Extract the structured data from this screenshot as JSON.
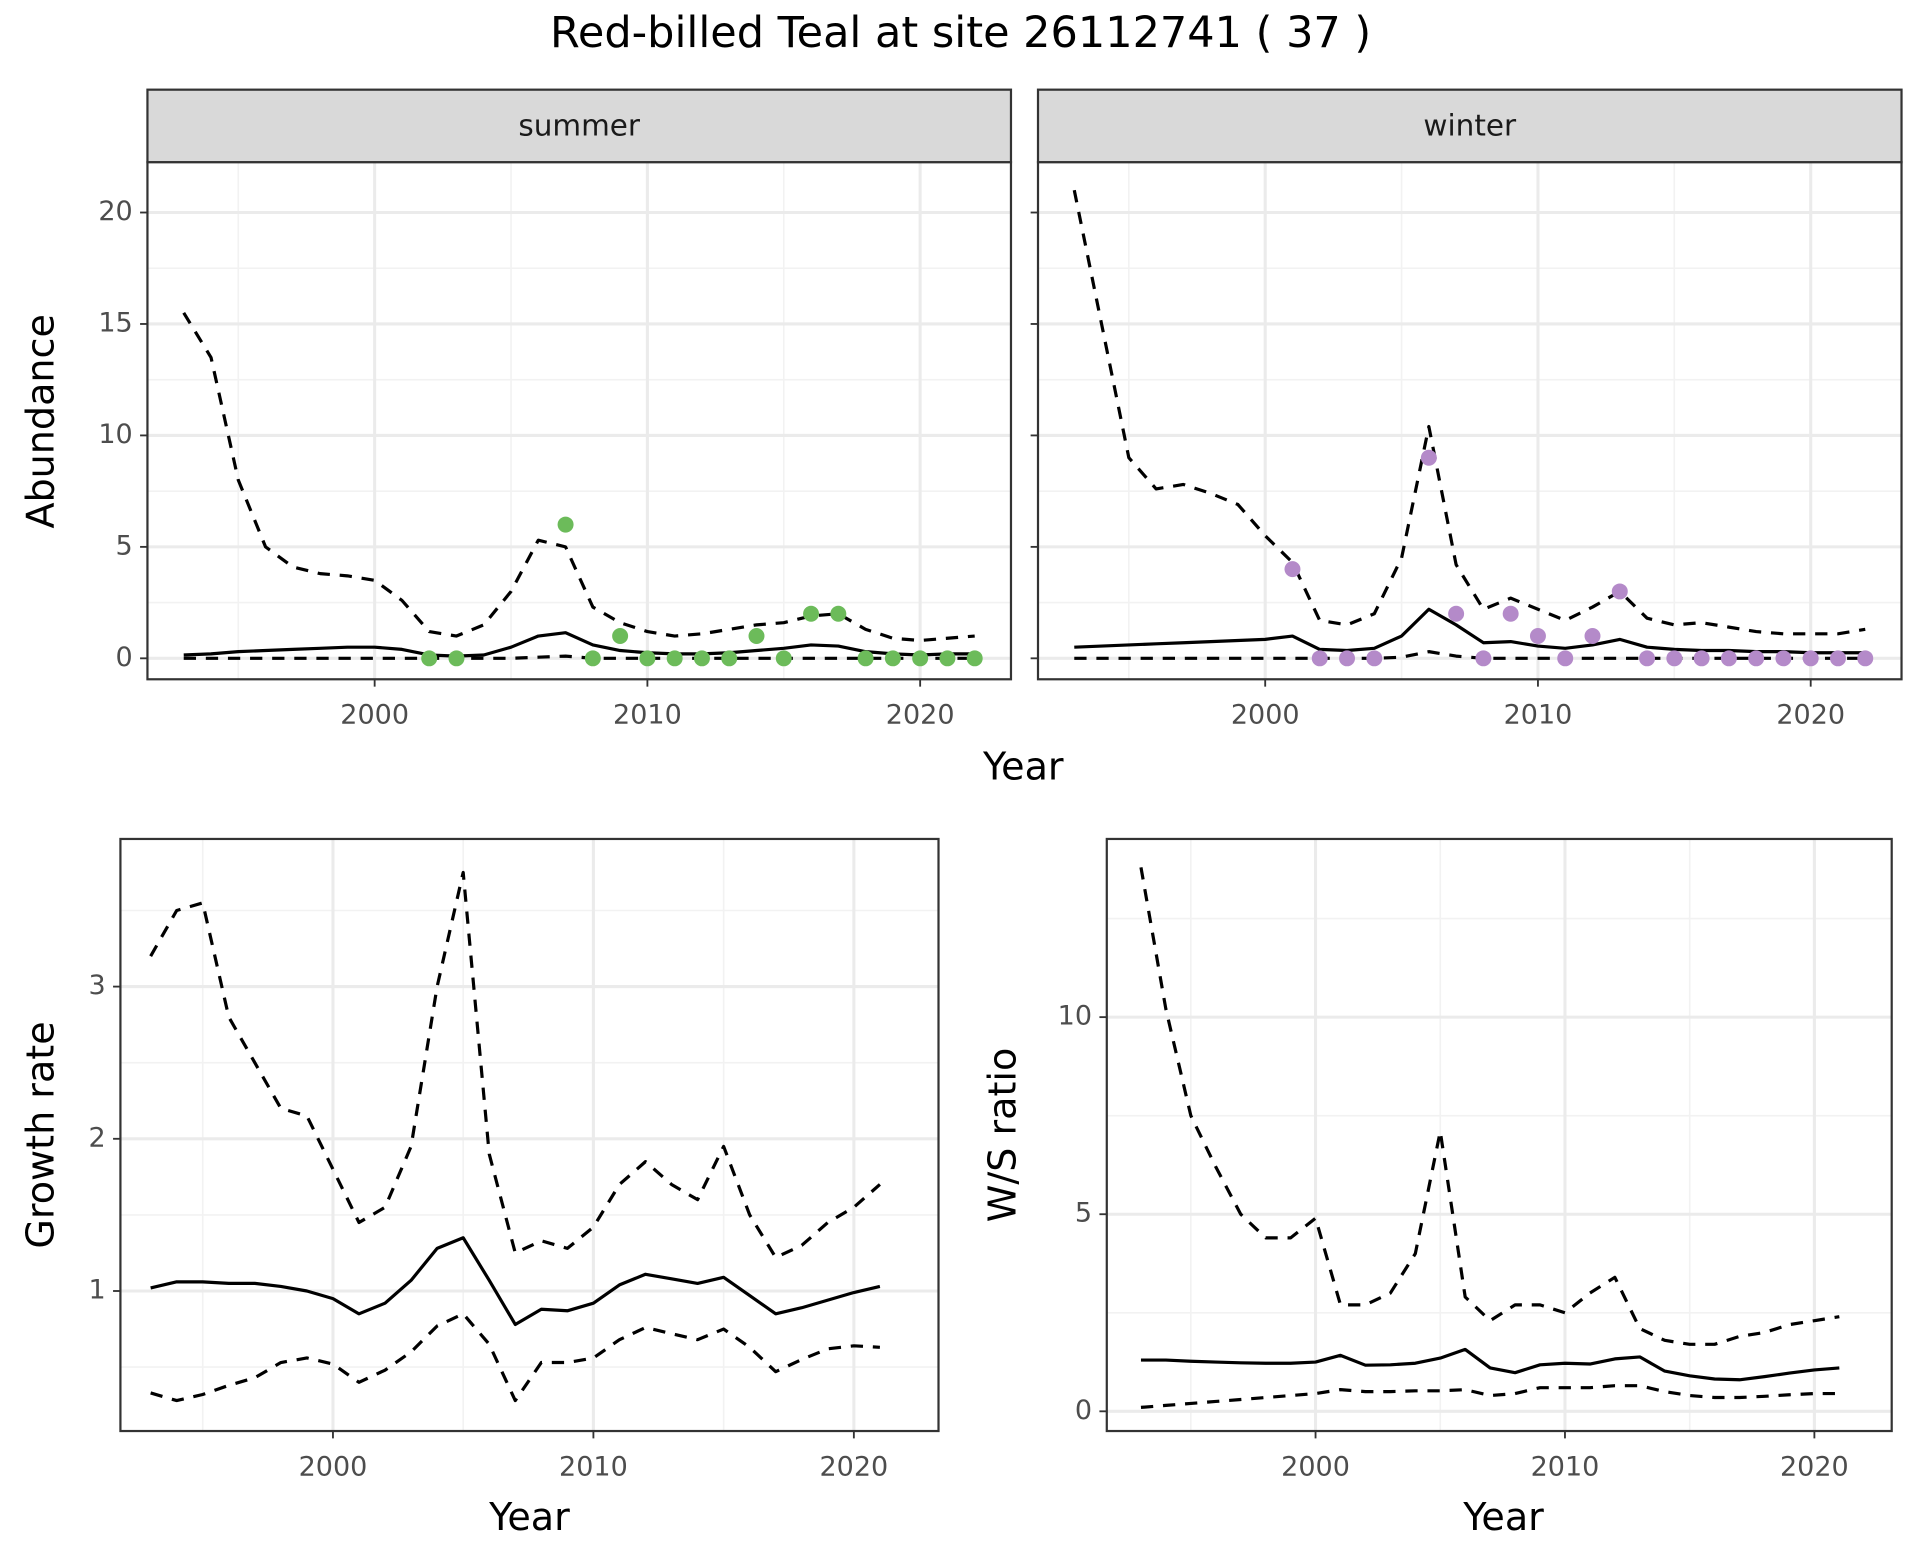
{
  "title": "Red-billed Teal at site 26112741 ( 37 )",
  "chart_data": [
    {
      "type": "line",
      "facet": "summer",
      "xlabel": "Year",
      "ylabel": "Abundance",
      "grid": true,
      "xlim": [
        1991.67,
        2023.33
      ],
      "ylim": [
        -0.94,
        22.26
      ],
      "xticks": [
        2000,
        2010,
        2020
      ],
      "xminor": [
        1995,
        2005,
        2015
      ],
      "yticks": [
        0,
        5,
        10,
        15,
        20
      ],
      "yminor": [
        2.5,
        7.5,
        12.5,
        17.5
      ],
      "series": [
        {
          "style": "dashed",
          "color": "#000000",
          "x": [
            1993,
            1994,
            1995,
            1996,
            1997,
            1998,
            1999,
            2000,
            2001,
            2002,
            2003,
            2004,
            2005,
            2006,
            2007,
            2008,
            2009,
            2010,
            2011,
            2012,
            2013,
            2014,
            2015,
            2016,
            2017,
            2018,
            2019,
            2020,
            2021,
            2022
          ],
          "values": [
            15.5,
            13.5,
            8,
            5,
            4.1,
            3.8,
            3.7,
            3.5,
            2.6,
            1.2,
            1.0,
            1.5,
            3.0,
            5.3,
            5.0,
            2.3,
            1.6,
            1.2,
            1.0,
            1.1,
            1.3,
            1.5,
            1.6,
            1.9,
            2.0,
            1.3,
            0.9,
            0.8,
            0.9,
            1.0
          ]
        },
        {
          "style": "solid",
          "color": "#000000",
          "x": [
            1993,
            1994,
            1995,
            1996,
            1997,
            1998,
            1999,
            2000,
            2001,
            2002,
            2003,
            2004,
            2005,
            2006,
            2007,
            2008,
            2009,
            2010,
            2011,
            2012,
            2013,
            2014,
            2015,
            2016,
            2017,
            2018,
            2019,
            2020,
            2021,
            2022
          ],
          "values": [
            0.15,
            0.2,
            0.3,
            0.35,
            0.4,
            0.45,
            0.5,
            0.5,
            0.4,
            0.15,
            0.1,
            0.15,
            0.5,
            1.0,
            1.15,
            0.6,
            0.35,
            0.25,
            0.2,
            0.2,
            0.25,
            0.35,
            0.45,
            0.6,
            0.55,
            0.3,
            0.2,
            0.15,
            0.2,
            0.2
          ]
        },
        {
          "style": "dashed",
          "color": "#000000",
          "x": [
            1993,
            1994,
            1995,
            1996,
            1997,
            1998,
            1999,
            2000,
            2001,
            2002,
            2003,
            2004,
            2005,
            2006,
            2007,
            2008,
            2009,
            2010,
            2011,
            2012,
            2013,
            2014,
            2015,
            2016,
            2017,
            2018,
            2019,
            2020,
            2021,
            2022
          ],
          "values": [
            0,
            0,
            0,
            0,
            0,
            0,
            0,
            0,
            0,
            0,
            0,
            0,
            0,
            0.05,
            0.1,
            0,
            0,
            0,
            0,
            0,
            0,
            0,
            0,
            0,
            0,
            0,
            0,
            0,
            0,
            0
          ]
        },
        {
          "style": "points",
          "color": "#6cbb5a",
          "x": [
            2002,
            2003,
            2007,
            2008,
            2009,
            2010,
            2011,
            2012,
            2013,
            2014,
            2015,
            2016,
            2017,
            2018,
            2019,
            2020,
            2021,
            2022
          ],
          "values": [
            0,
            0,
            6,
            0,
            1,
            0,
            0,
            0,
            0,
            1,
            0,
            2,
            2,
            0,
            0,
            0,
            0,
            0
          ]
        }
      ]
    },
    {
      "type": "line",
      "facet": "winter",
      "yticklabels": false,
      "grid": true,
      "xlim": [
        1991.67,
        2023.33
      ],
      "ylim": [
        -0.94,
        22.26
      ],
      "xticks": [
        2000,
        2010,
        2020
      ],
      "xminor": [
        1995,
        2005,
        2015
      ],
      "yticks": [
        0,
        5,
        10,
        15,
        20
      ],
      "yminor": [
        2.5,
        7.5,
        12.5,
        17.5
      ],
      "series": [
        {
          "style": "dashed",
          "color": "#000000",
          "x": [
            1993,
            1994,
            1995,
            1996,
            1997,
            1998,
            1999,
            2000,
            2001,
            2002,
            2003,
            2004,
            2005,
            2006,
            2007,
            2008,
            2009,
            2010,
            2011,
            2012,
            2013,
            2014,
            2015,
            2016,
            2017,
            2018,
            2019,
            2020,
            2021,
            2022
          ],
          "values": [
            21,
            15,
            9,
            7.6,
            7.8,
            7.4,
            6.9,
            5.5,
            4.3,
            1.7,
            1.5,
            2.0,
            4.5,
            10.4,
            4.2,
            2.2,
            2.7,
            2.2,
            1.7,
            2.3,
            3.0,
            1.8,
            1.5,
            1.6,
            1.4,
            1.2,
            1.1,
            1.1,
            1.1,
            1.3
          ]
        },
        {
          "style": "solid",
          "color": "#000000",
          "x": [
            1993,
            1994,
            1995,
            1996,
            1997,
            1998,
            1999,
            2000,
            2001,
            2002,
            2003,
            2004,
            2005,
            2006,
            2007,
            2008,
            2009,
            2010,
            2011,
            2012,
            2013,
            2014,
            2015,
            2016,
            2017,
            2018,
            2019,
            2020,
            2021,
            2022
          ],
          "values": [
            0.5,
            0.55,
            0.6,
            0.65,
            0.7,
            0.75,
            0.8,
            0.85,
            1.0,
            0.4,
            0.35,
            0.45,
            1.0,
            2.2,
            1.5,
            0.7,
            0.75,
            0.55,
            0.45,
            0.6,
            0.85,
            0.5,
            0.4,
            0.35,
            0.35,
            0.3,
            0.3,
            0.25,
            0.25,
            0.25
          ]
        },
        {
          "style": "dashed",
          "color": "#000000",
          "x": [
            1993,
            1994,
            1995,
            1996,
            1997,
            1998,
            1999,
            2000,
            2001,
            2002,
            2003,
            2004,
            2005,
            2006,
            2007,
            2008,
            2009,
            2010,
            2011,
            2012,
            2013,
            2014,
            2015,
            2016,
            2017,
            2018,
            2019,
            2020,
            2021,
            2022
          ],
          "values": [
            0,
            0,
            0,
            0,
            0,
            0,
            0,
            0,
            0,
            0,
            0,
            0,
            0.05,
            0.3,
            0.1,
            0,
            0,
            0,
            0,
            0,
            0,
            0,
            0,
            0,
            0,
            0,
            0,
            0,
            0,
            0
          ]
        },
        {
          "style": "points",
          "color": "#b48ac9",
          "x": [
            2001,
            2002,
            2003,
            2004,
            2006,
            2007,
            2008,
            2009,
            2010,
            2011,
            2012,
            2013,
            2014,
            2015,
            2016,
            2017,
            2018,
            2019,
            2020,
            2021,
            2022
          ],
          "values": [
            4,
            0,
            0,
            0,
            9,
            2,
            0,
            2,
            1,
            0,
            1,
            3,
            0,
            0,
            0,
            0,
            0,
            0,
            0,
            0,
            0
          ]
        }
      ]
    },
    {
      "type": "line",
      "xlabel": "Year",
      "ylabel": "Growth rate",
      "grid": true,
      "xlim": [
        1991.84,
        2023.25
      ],
      "ylim": [
        0.08,
        3.97
      ],
      "xticks": [
        2000,
        2010,
        2020
      ],
      "xminor": [
        1995,
        2005,
        2015
      ],
      "yticks": [
        1,
        2,
        3
      ],
      "yminor": [
        0.5,
        1.5,
        2.5,
        3.5
      ],
      "series": [
        {
          "style": "dashed",
          "color": "#000000",
          "x": [
            1993,
            1994,
            1995,
            1996,
            1997,
            1998,
            1999,
            2000,
            2001,
            2002,
            2003,
            2004,
            2005,
            2006,
            2007,
            2008,
            2009,
            2010,
            2011,
            2012,
            2013,
            2014,
            2015,
            2016,
            2017,
            2018,
            2019,
            2020,
            2021
          ],
          "values": [
            3.2,
            3.5,
            3.55,
            2.8,
            2.5,
            2.2,
            2.15,
            1.8,
            1.45,
            1.55,
            1.95,
            3.0,
            3.75,
            1.9,
            1.25,
            1.33,
            1.28,
            1.42,
            1.7,
            1.85,
            1.7,
            1.6,
            1.95,
            1.5,
            1.22,
            1.3,
            1.45,
            1.55,
            1.7
          ]
        },
        {
          "style": "solid",
          "color": "#000000",
          "x": [
            1993,
            1994,
            1995,
            1996,
            1997,
            1998,
            1999,
            2000,
            2001,
            2002,
            2003,
            2004,
            2005,
            2006,
            2007,
            2008,
            2009,
            2010,
            2011,
            2012,
            2013,
            2014,
            2015,
            2016,
            2017,
            2018,
            2019,
            2020,
            2021
          ],
          "values": [
            1.02,
            1.06,
            1.06,
            1.05,
            1.05,
            1.03,
            1.0,
            0.95,
            0.85,
            0.92,
            1.07,
            1.28,
            1.35,
            1.07,
            0.78,
            0.88,
            0.87,
            0.92,
            1.04,
            1.11,
            1.08,
            1.05,
            1.09,
            0.97,
            0.85,
            0.89,
            0.94,
            0.99,
            1.03
          ]
        },
        {
          "style": "dashed",
          "color": "#000000",
          "x": [
            1993,
            1994,
            1995,
            1996,
            1997,
            1998,
            1999,
            2000,
            2001,
            2002,
            2003,
            2004,
            2005,
            2006,
            2007,
            2008,
            2009,
            2010,
            2011,
            2012,
            2013,
            2014,
            2015,
            2016,
            2017,
            2018,
            2019,
            2020,
            2021
          ],
          "values": [
            0.33,
            0.28,
            0.32,
            0.38,
            0.43,
            0.53,
            0.56,
            0.52,
            0.4,
            0.48,
            0.6,
            0.77,
            0.85,
            0.65,
            0.28,
            0.53,
            0.53,
            0.56,
            0.68,
            0.76,
            0.72,
            0.68,
            0.75,
            0.63,
            0.47,
            0.55,
            0.62,
            0.64,
            0.63
          ]
        }
      ]
    },
    {
      "type": "line",
      "xlabel": "Year",
      "ylabel": "W/S ratio",
      "grid": true,
      "xlim": [
        1991.63,
        2023.1
      ],
      "ylim": [
        -0.5,
        14.52
      ],
      "xticks": [
        2000,
        2010,
        2020
      ],
      "xminor": [
        1995,
        2005,
        2015
      ],
      "yticks": [
        0,
        5,
        10
      ],
      "yminor": [
        2.5,
        7.5,
        12.5
      ],
      "series": [
        {
          "style": "dashed",
          "color": "#000000",
          "x": [
            1993,
            1994,
            1995,
            1996,
            1997,
            1998,
            1999,
            2000,
            2001,
            2002,
            2003,
            2004,
            2005,
            2006,
            2007,
            2008,
            2009,
            2010,
            2011,
            2012,
            2013,
            2014,
            2015,
            2016,
            2017,
            2018,
            2019,
            2020,
            2021
          ],
          "values": [
            13.8,
            10.2,
            7.5,
            6.2,
            5.0,
            4.4,
            4.4,
            4.9,
            2.7,
            2.7,
            3.0,
            4.0,
            7.1,
            2.9,
            2.3,
            2.7,
            2.7,
            2.5,
            3.0,
            3.4,
            2.1,
            1.8,
            1.7,
            1.7,
            1.9,
            2.0,
            2.2,
            2.3,
            2.4
          ]
        },
        {
          "style": "solid",
          "color": "#000000",
          "x": [
            1993,
            1994,
            1995,
            1996,
            1997,
            1998,
            1999,
            2000,
            2001,
            2002,
            2003,
            2004,
            2005,
            2006,
            2007,
            2008,
            2009,
            2010,
            2011,
            2012,
            2013,
            2014,
            2015,
            2016,
            2017,
            2018,
            2019,
            2020,
            2021
          ],
          "values": [
            1.3,
            1.3,
            1.27,
            1.25,
            1.23,
            1.22,
            1.22,
            1.25,
            1.42,
            1.17,
            1.18,
            1.22,
            1.35,
            1.57,
            1.1,
            0.98,
            1.18,
            1.22,
            1.2,
            1.33,
            1.38,
            1.02,
            0.9,
            0.82,
            0.8,
            0.88,
            0.97,
            1.05,
            1.1
          ]
        },
        {
          "style": "dashed",
          "color": "#000000",
          "x": [
            1993,
            1994,
            1995,
            1996,
            1997,
            1998,
            1999,
            2000,
            2001,
            2002,
            2003,
            2004,
            2005,
            2006,
            2007,
            2008,
            2009,
            2010,
            2011,
            2012,
            2013,
            2014,
            2015,
            2016,
            2017,
            2018,
            2019,
            2020,
            2021
          ],
          "values": [
            0.1,
            0.15,
            0.2,
            0.25,
            0.3,
            0.35,
            0.4,
            0.45,
            0.55,
            0.5,
            0.5,
            0.52,
            0.52,
            0.55,
            0.4,
            0.45,
            0.6,
            0.6,
            0.6,
            0.65,
            0.65,
            0.5,
            0.4,
            0.35,
            0.35,
            0.38,
            0.42,
            0.45,
            0.45
          ]
        }
      ]
    }
  ]
}
